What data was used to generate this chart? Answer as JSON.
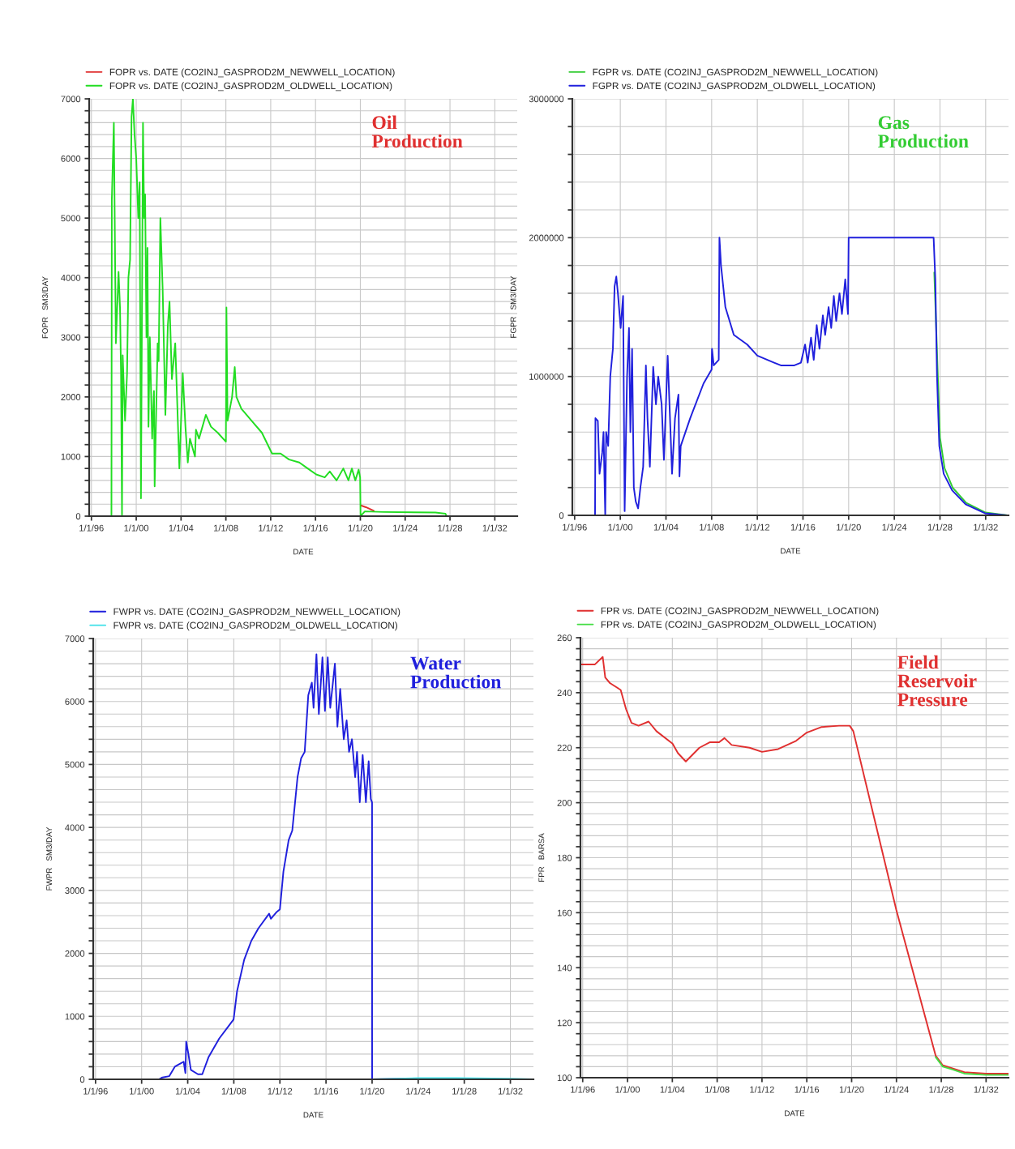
{
  "chart_data": [
    {
      "type": "line",
      "title": "Oil\nProduction",
      "xlabel": "DATE",
      "ylabel": "FOPR   SM3/DAY",
      "legend": "top left",
      "grid": true,
      "line_style": "solid",
      "xlim": [
        "1995-10-20",
        "2034-01-01"
      ],
      "xticks": [
        {
          "value": "1996-01-01",
          "label": "1/1/96"
        },
        {
          "value": "2000-01-01",
          "label": "1/1/00"
        },
        {
          "value": "2004-01-01",
          "label": "1/1/04"
        },
        {
          "value": "2008-01-01",
          "label": "1/1/08"
        },
        {
          "value": "2012-01-01",
          "label": "1/1/12"
        },
        {
          "value": "2016-01-01",
          "label": "1/1/16"
        },
        {
          "value": "2020-01-01",
          "label": "1/1/20"
        },
        {
          "value": "2024-01-01",
          "label": "1/1/24"
        },
        {
          "value": "2028-01-01",
          "label": "1/1/28"
        },
        {
          "value": "2032-01-01",
          "label": "1/1/32"
        }
      ],
      "ylim": [
        0,
        7000
      ],
      "yticks": [
        0,
        {
          "value": 200,
          "label": null
        },
        {
          "value": 400,
          "label": null
        },
        {
          "value": 600,
          "label": null
        },
        {
          "value": 800,
          "label": null
        },
        1000,
        {
          "value": 1200,
          "label": null
        },
        {
          "value": 1400,
          "label": null
        },
        {
          "value": 1600,
          "label": null
        },
        {
          "value": 1800,
          "label": null
        },
        2000,
        {
          "value": 2200,
          "label": null
        },
        {
          "value": 2400,
          "label": null
        },
        {
          "value": 2600,
          "label": null
        },
        {
          "value": 2800,
          "label": null
        },
        3000,
        {
          "value": 3200,
          "label": null
        },
        {
          "value": 3400,
          "label": null
        },
        {
          "value": 3600,
          "label": null
        },
        {
          "value": 3800,
          "label": null
        },
        4000,
        {
          "value": 4200,
          "label": null
        },
        {
          "value": 4400,
          "label": null
        },
        {
          "value": 4600,
          "label": null
        },
        {
          "value": 4800,
          "label": null
        },
        5000,
        {
          "value": 5200,
          "label": null
        },
        {
          "value": 5400,
          "label": null
        },
        {
          "value": 5600,
          "label": null
        },
        {
          "value": 5800,
          "label": null
        },
        6000,
        {
          "value": 6200,
          "label": null
        },
        {
          "value": 6400,
          "label": null
        },
        {
          "value": 6600,
          "label": null
        },
        {
          "value": 6800,
          "label": null
        },
        7000
      ],
      "series": [
        {
          "name": "FOPR vs. DATE (CO2INJ_GASPROD2M_NEWWELL_LOCATION)",
          "color": "#e03030",
          "x": [
            "2020-01-19",
            "2020-07-02",
            "2021-03-15"
          ],
          "values": [
            180,
            150,
            90
          ]
        },
        {
          "name": "FOPR vs. DATE (CO2INJ_GASPROD2M_OLDWELL_LOCATION)",
          "color": "#22dd22",
          "x": [
            "1995-10-20",
            "1997-10-15",
            "1997-10-27",
            "1998-01-01",
            "1998-03-08",
            "1998-06-03",
            "1998-07-21",
            "1998-08-23",
            "1998-09-24",
            "1998-10-16",
            "1999-01-01",
            "1999-03-08",
            "1999-04-21",
            "1999-06-14",
            "1999-08-01",
            "1999-09-14",
            "1999-11-07",
            "2000-01-01",
            "2000-03-08",
            "2000-04-21",
            "2000-06-03",
            "2000-08-08",
            "2000-09-14",
            "2000-10-16",
            "2000-11-29",
            "2001-01-01",
            "2001-02-03",
            "2001-03-19",
            "2001-06-03",
            "2001-08-01",
            "2001-08-23",
            "2001-11-29",
            "2002-01-01",
            "2002-02-25",
            "2002-05-12",
            "2002-08-08",
            "2002-10-27",
            "2002-12-21",
            "2003-03-08",
            "2003-06-25",
            "2003-08-23",
            "2003-11-07",
            "2004-02-25",
            "2004-05-23",
            "2004-08-08",
            "2004-10-16",
            "2005-03-30",
            "2005-05-01",
            "2005-08-08",
            "2006-03-19",
            "2006-09-03",
            "2007-04-10",
            "2008-01-01",
            "2008-01-19",
            "2008-02-25",
            "2008-07-21",
            "2008-10-16",
            "2008-12-10",
            "2009-05-23",
            "2010-04-21",
            "2011-03-19",
            "2012-02-14",
            "2012-11-18",
            "2013-08-23",
            "2014-07-21",
            "2015-04-21",
            "2016-01-23",
            "2016-10-27",
            "2017-04-10",
            "2017-11-18",
            "2018-06-25",
            "2018-12-10",
            "2019-03-30",
            "2019-07-21",
            "2019-11-07",
            "2019-12-25",
            "2020-01-08",
            "2020-05-27",
            "2022-02-07",
            "2026-09-14",
            "2027-08-08",
            "2027-09-14",
            "2034-01-01"
          ],
          "values": [
            0,
            0,
            5300,
            6600,
            2900,
            4100,
            3500,
            2400,
            0,
            2700,
            1600,
            2400,
            4000,
            4300,
            6700,
            7000,
            6400,
            6000,
            5000,
            5600,
            300,
            6600,
            5000,
            5400,
            3000,
            4500,
            1500,
            3000,
            1300,
            2100,
            500,
            2900,
            2600,
            5000,
            3800,
            1700,
            3200,
            3600,
            2300,
            2900,
            2000,
            800,
            2400,
            1500,
            900,
            1300,
            1000,
            1450,
            1300,
            1700,
            1500,
            1400,
            1250,
            3500,
            1600,
            2000,
            2500,
            2000,
            1800,
            1600,
            1400,
            1050,
            1050,
            950,
            900,
            800,
            700,
            650,
            750,
            600,
            800,
            600,
            800,
            600,
            780,
            650,
            0,
            80,
            70,
            60,
            40,
            0,
            0
          ]
        }
      ]
    },
    {
      "type": "line",
      "title": "Gas\nProduction",
      "xlabel": "DATE",
      "ylabel": "FGPR   SM3/DAY",
      "legend": "top left",
      "grid": true,
      "line_style": "solid",
      "xlim": [
        "1995-10-20",
        "2034-01-01"
      ],
      "xticks": [
        {
          "value": "1996-01-01",
          "label": "1/1/96"
        },
        {
          "value": "2000-01-01",
          "label": "1/1/00"
        },
        {
          "value": "2004-01-01",
          "label": "1/1/04"
        },
        {
          "value": "2008-01-01",
          "label": "1/1/08"
        },
        {
          "value": "2012-01-01",
          "label": "1/1/12"
        },
        {
          "value": "2016-01-01",
          "label": "1/1/16"
        },
        {
          "value": "2020-01-01",
          "label": "1/1/20"
        },
        {
          "value": "2024-01-01",
          "label": "1/1/24"
        },
        {
          "value": "2028-01-01",
          "label": "1/1/28"
        },
        {
          "value": "2032-01-01",
          "label": "1/1/32"
        }
      ],
      "ylim": [
        0,
        3000000
      ],
      "yticks": [
        0,
        {
          "value": 200000,
          "label": null
        },
        {
          "value": 400000,
          "label": null
        },
        {
          "value": 600000,
          "label": null
        },
        {
          "value": 800000,
          "label": null
        },
        1000000,
        {
          "value": 1200000,
          "label": null
        },
        {
          "value": 1400000,
          "label": null
        },
        {
          "value": 1600000,
          "label": null
        },
        {
          "value": 1800000,
          "label": null
        },
        2000000,
        {
          "value": 2200000,
          "label": null
        },
        {
          "value": 2400000,
          "label": null
        },
        {
          "value": 2600000,
          "label": null
        },
        {
          "value": 2800000,
          "label": null
        },
        3000000
      ],
      "series": [
        {
          "name": "FGPR vs. DATE (CO2INJ_GASPROD2M_NEWWELL_LOCATION)",
          "color": "#33cc33",
          "x": [
            "2027-07-02",
            "2027-09-28",
            "2028-01-01",
            "2028-05-27",
            "2029-02-07",
            "2030-04-21",
            "2032-01-01",
            "2033-11-25"
          ],
          "values": [
            1750000,
            null,
            560000,
            340000,
            200000,
            90000,
            20000,
            0
          ]
        },
        {
          "name": "FGPR vs. DATE (CO2INJ_GASPROD2M_OLDWELL_LOCATION)",
          "color": "#2020dd",
          "x": [
            "1995-10-27",
            "1997-10-15",
            "1997-10-27",
            "1998-01-12",
            "1998-03-08",
            "1998-05-31",
            "1998-07-13",
            "1998-09-06",
            "1998-10-05",
            "1998-12-10",
            "1999-02-14",
            "1999-05-09",
            "1999-07-02",
            "1999-08-26",
            "1999-10-16",
            "2000-01-12",
            "2000-03-30",
            "2000-05-19",
            "2000-08-04",
            "2000-10-05",
            "2000-11-18",
            "2001-01-12",
            "2001-03-08",
            "2001-05-09",
            "2001-07-24",
            "2001-10-05",
            "2002-01-01",
            "2002-03-30",
            "2002-05-19",
            "2002-08-04",
            "2002-11-18",
            "2003-02-14",
            "2003-04-28",
            "2003-08-15",
            "2003-10-27",
            "2004-02-25",
            "2004-05-09",
            "2004-07-13",
            "2004-10-16",
            "2005-02-03",
            "2005-03-08",
            "2005-04-17",
            "2006-02-14",
            "2007-04-17",
            "2008-01-01",
            "2008-01-12",
            "2008-03-08",
            "2008-08-15",
            "2008-09-06",
            "2008-10-27",
            "2009-03-15",
            "2009-12-10",
            "2011-02-14",
            "2012-01-01",
            "2013-06-22",
            "2014-01-23",
            "2015-03-30",
            "2015-10-27",
            "2016-03-08",
            "2016-05-31",
            "2016-09-14",
            "2016-12-10",
            "2017-03-15",
            "2017-06-11",
            "2017-09-28",
            "2017-12-10",
            "2018-03-30",
            "2018-06-22",
            "2018-09-14",
            "2018-11-29",
            "2019-03-15",
            "2019-05-31",
            "2019-09-14",
            "2019-12-10",
            "2020-01-01",
            "2027-06-11",
            "2027-08-04",
            "2027-09-28",
            "2027-12-10",
            "2028-04-28",
            "2029-01-23",
            "2030-03-30",
            "2031-12-10",
            "2033-11-25"
          ],
          "values": [
            0,
            0,
            700000,
            680000,
            300000,
            450000,
            600000,
            0,
            600000,
            500000,
            1000000,
            1200000,
            1650000,
            1720000,
            1600000,
            1350000,
            1580000,
            30000,
            1000000,
            1350000,
            600000,
            1200000,
            200000,
            100000,
            50000,
            200000,
            350000,
            1080000,
            700000,
            350000,
            1070000,
            800000,
            1000000,
            800000,
            400000,
            1150000,
            700000,
            300000,
            700000,
            870000,
            280000,
            500000,
            700000,
            950000,
            1050000,
            1200000,
            1080000,
            1120000,
            2000000,
            1800000,
            1500000,
            1300000,
            1230000,
            1150000,
            1100000,
            1080000,
            1080000,
            1100000,
            1230000,
            1100000,
            1280000,
            1120000,
            1370000,
            1200000,
            1440000,
            1300000,
            1500000,
            1350000,
            1580000,
            1400000,
            1600000,
            1450000,
            1700000,
            1450000,
            2000000,
            2000000,
            1700000,
            1000000,
            500000,
            300000,
            180000,
            80000,
            15000,
            0
          ]
        }
      ]
    },
    {
      "type": "line",
      "title": "Water\nProduction",
      "xlabel": "DATE",
      "ylabel": "FWPR   SM3/DAY",
      "legend": "top left",
      "grid": true,
      "line_style": "solid",
      "xlim": [
        "1995-10-20",
        "2034-01-01"
      ],
      "xticks": [
        {
          "value": "1996-01-01",
          "label": "1/1/96"
        },
        {
          "value": "2000-01-01",
          "label": "1/1/00"
        },
        {
          "value": "2004-01-01",
          "label": "1/1/04"
        },
        {
          "value": "2008-01-01",
          "label": "1/1/08"
        },
        {
          "value": "2012-01-01",
          "label": "1/1/12"
        },
        {
          "value": "2016-01-01",
          "label": "1/1/16"
        },
        {
          "value": "2020-01-01",
          "label": "1/1/20"
        },
        {
          "value": "2024-01-01",
          "label": "1/1/24"
        },
        {
          "value": "2028-01-01",
          "label": "1/1/28"
        },
        {
          "value": "2032-01-01",
          "label": "1/1/32"
        }
      ],
      "ylim": [
        0,
        7000
      ],
      "yticks": [
        0,
        {
          "value": 200,
          "label": null
        },
        {
          "value": 400,
          "label": null
        },
        {
          "value": 600,
          "label": null
        },
        {
          "value": 800,
          "label": null
        },
        1000,
        {
          "value": 1200,
          "label": null
        },
        {
          "value": 1400,
          "label": null
        },
        {
          "value": 1600,
          "label": null
        },
        {
          "value": 1800,
          "label": null
        },
        2000,
        {
          "value": 2200,
          "label": null
        },
        {
          "value": 2400,
          "label": null
        },
        {
          "value": 2600,
          "label": null
        },
        {
          "value": 2800,
          "label": null
        },
        3000,
        {
          "value": 3200,
          "label": null
        },
        {
          "value": 3400,
          "label": null
        },
        {
          "value": 3600,
          "label": null
        },
        {
          "value": 3800,
          "label": null
        },
        4000,
        {
          "value": 4200,
          "label": null
        },
        {
          "value": 4400,
          "label": null
        },
        {
          "value": 4600,
          "label": null
        },
        {
          "value": 4800,
          "label": null
        },
        5000,
        {
          "value": 5200,
          "label": null
        },
        {
          "value": 5400,
          "label": null
        },
        {
          "value": 5600,
          "label": null
        },
        {
          "value": 5800,
          "label": null
        },
        6000,
        {
          "value": 6200,
          "label": null
        },
        {
          "value": 6400,
          "label": null
        },
        {
          "value": 6600,
          "label": null
        },
        {
          "value": 6800,
          "label": null
        },
        7000
      ],
      "series": [
        {
          "name": "FWPR vs. DATE (CO2INJ_GASPROD2M_NEWWELL_LOCATION)",
          "color": "#2020dd",
          "x": [
            "1995-10-20",
            "2001-07-02",
            "2001-10-20",
            "2002-05-27",
            "2002-11-18",
            "2003-05-09",
            "2003-08-26",
            "2003-10-20",
            "2003-11-14",
            "2004-01-23",
            "2004-04-10",
            "2004-11-21",
            "2005-04-06",
            "2005-10-20",
            "2006-09-28",
            "2007-12-25",
            "2008-04-13",
            "2008-11-25",
            "2009-07-10",
            "2010-02-21",
            "2011-01-23",
            "2011-03-22",
            "2011-09-06",
            "2012-01-01",
            "2012-04-21",
            "2012-10-05",
            "2013-01-27",
            "2013-07-13",
            "2013-11-04",
            "2014-02-25",
            "2014-06-18",
            "2014-10-09",
            "2014-12-03",
            "2015-03-04",
            "2015-05-19",
            "2015-09-10",
            "2015-11-29",
            "2016-02-25",
            "2016-05-15",
            "2016-10-09",
            "2016-12-28",
            "2017-03-26",
            "2017-07-17",
            "2017-10-16",
            "2018-01-01",
            "2018-04-02",
            "2018-07-13",
            "2018-09-10",
            "2018-12-06",
            "2019-03-08",
            "2019-06-18",
            "2019-09-14",
            "2019-11-21",
            "2019-12-31",
            "2020-01-02",
            "2024-01-01"
          ],
          "values": [
            0,
            0,
            30,
            50,
            200,
            250,
            280,
            100,
            600,
            400,
            150,
            80,
            80,
            350,
            650,
            950,
            1400,
            1900,
            2200,
            2400,
            2630,
            2550,
            2650,
            2700,
            3300,
            3800,
            3950,
            4800,
            5100,
            5200,
            6100,
            6300,
            5900,
            6750,
            5800,
            6700,
            5850,
            6700,
            5900,
            6600,
            5600,
            6200,
            5400,
            5700,
            5200,
            5400,
            4800,
            5200,
            4400,
            5150,
            4400,
            5050,
            4450,
            4400,
            0,
            10
          ]
        },
        {
          "name": "FWPR vs. DATE (CO2INJ_GASPROD2M_OLDWELL_LOCATION)",
          "color": "#40e0e8",
          "x": [
            "2020-01-01",
            "2024-01-01",
            "2027-05-27",
            "2032-01-01",
            "2034-01-01"
          ],
          "values": [
            0,
            20,
            20,
            10,
            0
          ]
        }
      ]
    },
    {
      "type": "line",
      "title": "Field\nReservoir\nPressure",
      "xlabel": "DATE",
      "ylabel": "FPR   BARSA",
      "legend": "top left",
      "grid": true,
      "line_style": "solid",
      "xlim": [
        "1995-10-20",
        "2034-01-01"
      ],
      "xticks": [
        {
          "value": "1996-01-01",
          "label": "1/1/96"
        },
        {
          "value": "2000-01-01",
          "label": "1/1/00"
        },
        {
          "value": "2004-01-01",
          "label": "1/1/04"
        },
        {
          "value": "2008-01-01",
          "label": "1/1/08"
        },
        {
          "value": "2012-01-01",
          "label": "1/1/12"
        },
        {
          "value": "2016-01-01",
          "label": "1/1/16"
        },
        {
          "value": "2020-01-01",
          "label": "1/1/20"
        },
        {
          "value": "2024-01-01",
          "label": "1/1/24"
        },
        {
          "value": "2028-01-01",
          "label": "1/1/28"
        },
        {
          "value": "2032-01-01",
          "label": "1/1/32"
        }
      ],
      "ylim": [
        100,
        260
      ],
      "yticks": [
        100,
        {
          "value": 104,
          "label": null
        },
        {
          "value": 108,
          "label": null
        },
        {
          "value": 112,
          "label": null
        },
        {
          "value": 116,
          "label": null
        },
        120,
        {
          "value": 124,
          "label": null
        },
        {
          "value": 128,
          "label": null
        },
        {
          "value": 132,
          "label": null
        },
        {
          "value": 136,
          "label": null
        },
        140,
        {
          "value": 144,
          "label": null
        },
        {
          "value": 148,
          "label": null
        },
        {
          "value": 152,
          "label": null
        },
        {
          "value": 156,
          "label": null
        },
        160,
        {
          "value": 164,
          "label": null
        },
        {
          "value": 168,
          "label": null
        },
        {
          "value": 172,
          "label": null
        },
        {
          "value": 176,
          "label": null
        },
        180,
        {
          "value": 184,
          "label": null
        },
        {
          "value": 188,
          "label": null
        },
        {
          "value": 192,
          "label": null
        },
        {
          "value": 196,
          "label": null
        },
        200,
        {
          "value": 204,
          "label": null
        },
        {
          "value": 208,
          "label": null
        },
        {
          "value": 212,
          "label": null
        },
        {
          "value": 216,
          "label": null
        },
        220,
        {
          "value": 224,
          "label": null
        },
        {
          "value": 228,
          "label": null
        },
        {
          "value": 232,
          "label": null
        },
        {
          "value": 236,
          "label": null
        },
        240,
        {
          "value": 244,
          "label": null
        },
        {
          "value": 248,
          "label": null
        },
        {
          "value": 252,
          "label": null
        },
        {
          "value": 256,
          "label": null
        },
        260
      ],
      "series": [
        {
          "name": "FPR vs. DATE (CO2INJ_GASPROD2M_NEWWELL_LOCATION)",
          "color": "#e03030",
          "x": [
            "1995-10-20",
            "1997-02-03",
            "1997-10-15",
            "1998-01-05",
            "1998-06-07",
            "1999-05-23",
            "1999-11-15",
            "2000-05-09",
            "2000-12-25",
            "2001-11-18",
            "2002-08-01",
            "2004-01-08",
            "2004-07-02",
            "2005-03-15",
            "2006-06-03",
            "2007-05-15",
            "2008-03-04",
            "2008-08-26",
            "2009-04-17",
            "2010-11-21",
            "2012-01-01",
            "2013-06-11",
            "2015-01-15",
            "2016-01-01",
            "2017-04-13",
            "2018-11-15",
            "2019-10-31",
            "2020-02-25",
            "2023-12-28",
            "2027-07-02",
            "2028-02-21",
            "2030-01-23",
            "2032-01-01",
            "2034-01-01"
          ],
          "values": [
            250.3,
            250.3,
            253,
            245.5,
            243.5,
            241,
            234,
            229,
            228,
            229.5,
            226,
            221.5,
            218,
            215,
            220,
            222,
            222,
            223.5,
            221,
            220,
            218.5,
            219.5,
            222.5,
            225.5,
            227.5,
            228,
            228,
            226,
            161,
            108,
            104.5,
            102,
            101.5,
            101.5
          ]
        },
        {
          "name": "FPR vs. DATE (CO2INJ_GASPROD2M_OLDWELL_LOCATION)",
          "color": "#44dd44",
          "x": [
            "2027-07-02",
            "2028-02-21",
            "2029-01-01",
            "2030-01-23",
            "2032-01-01",
            "2034-01-01"
          ],
          "values": [
            107.5,
            104,
            103,
            101.5,
            101,
            101
          ]
        }
      ]
    }
  ]
}
